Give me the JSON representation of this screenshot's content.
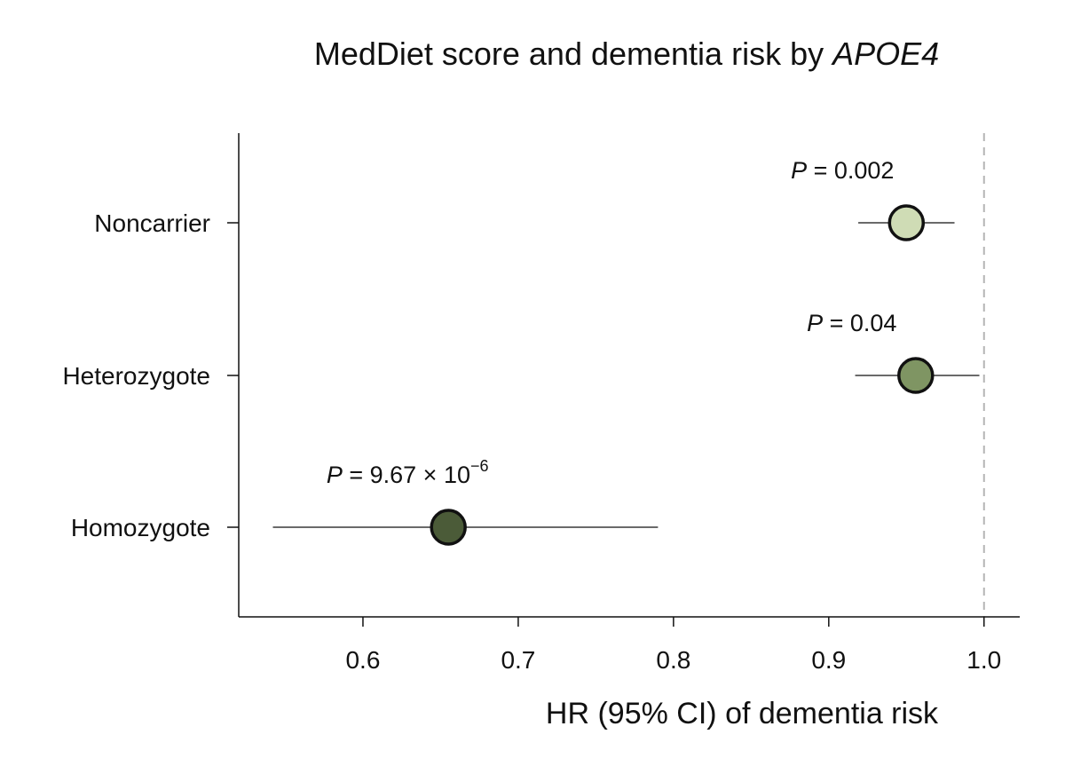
{
  "chart_data": {
    "type": "scatter",
    "subtype": "forest-plot",
    "title": "MedDiet score and dementia risk by ",
    "title_italic": "APOE4",
    "xlabel": "HR (95% CI) of dementia risk",
    "ylabel": "",
    "xlim": [
      0.52,
      1.023
    ],
    "xticks": [
      0.6,
      0.7,
      0.8,
      0.9,
      1.0
    ],
    "xtick_labels": [
      "0.6",
      "0.7",
      "0.8",
      "0.9",
      "1.0"
    ],
    "reference_line": 1.0,
    "grid": false,
    "categories": [
      "Noncarrier",
      "Heterozygote",
      "Homozygote"
    ],
    "hr": [
      0.95,
      0.956,
      0.655
    ],
    "ci_lower": [
      0.919,
      0.917,
      0.542
    ],
    "ci_upper": [
      0.981,
      0.997,
      0.79
    ],
    "colors": [
      "#cfdcb5",
      "#7f9563",
      "#4b5b38"
    ],
    "p_values": [
      {
        "prefix": "P",
        "text": " = 0.002"
      },
      {
        "prefix": "P",
        "text": " = 0.04"
      },
      {
        "prefix": "P",
        "text": " = 9.67 × 10",
        "exponent": "−6"
      }
    ]
  }
}
